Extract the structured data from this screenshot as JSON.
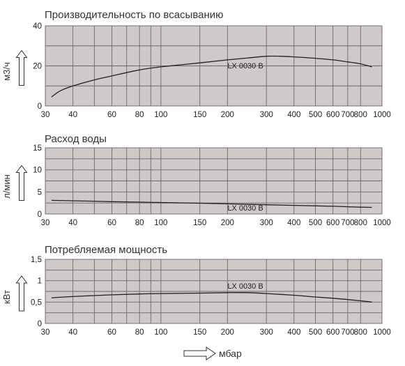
{
  "chart_data": [
    {
      "type": "line",
      "title": "Производительность по всасыванию",
      "xlabel": "мбар",
      "ylabel": "м3/ч",
      "x_scale": "log",
      "xlim": [
        30,
        1000
      ],
      "ylim": [
        0,
        40
      ],
      "x_ticks": [
        "30",
        "40",
        "60",
        "80",
        "100",
        "150",
        "200",
        "300",
        "400",
        "500",
        "600",
        "700",
        "800",
        "1000"
      ],
      "y_ticks": [
        "0",
        "20",
        "40"
      ],
      "grid": true,
      "series": [
        {
          "name": "LX 0030 B",
          "x": [
            32,
            35,
            40,
            50,
            60,
            80,
            100,
            150,
            200,
            250,
            300,
            350,
            400,
            500,
            600,
            700,
            800,
            900
          ],
          "y": [
            4.5,
            7.5,
            10,
            13,
            15,
            18,
            19.5,
            21.5,
            23,
            24,
            24.8,
            24.8,
            24.5,
            23.8,
            23,
            22,
            21,
            19.5
          ]
        }
      ]
    },
    {
      "type": "line",
      "title": "Расход воды",
      "xlabel": "мбар",
      "ylabel": "л/мин",
      "x_scale": "log",
      "xlim": [
        30,
        1000
      ],
      "ylim": [
        0,
        15
      ],
      "x_ticks": [
        "30",
        "40",
        "60",
        "80",
        "100",
        "150",
        "200",
        "300",
        "400",
        "500",
        "600",
        "700",
        "800",
        "1000"
      ],
      "y_ticks": [
        "0",
        "5",
        "10",
        "15"
      ],
      "grid": true,
      "series": [
        {
          "name": "LX 0030 B",
          "x": [
            32,
            40,
            60,
            80,
            100,
            150,
            200,
            300,
            400,
            500,
            600,
            700,
            800,
            900
          ],
          "y": [
            3.1,
            3.0,
            2.8,
            2.7,
            2.6,
            2.45,
            2.3,
            2.1,
            1.95,
            1.85,
            1.75,
            1.65,
            1.55,
            1.5
          ]
        }
      ]
    },
    {
      "type": "line",
      "title": "Потребляемая мощность",
      "xlabel": "мбар",
      "ylabel": "кВт",
      "x_scale": "log",
      "xlim": [
        30,
        1000
      ],
      "ylim": [
        0,
        1.5
      ],
      "x_ticks": [
        "30",
        "40",
        "60",
        "80",
        "100",
        "150",
        "200",
        "300",
        "400",
        "500",
        "600",
        "700",
        "800",
        "1000"
      ],
      "y_ticks": [
        "0",
        "0,5",
        "1",
        "1,5"
      ],
      "grid": true,
      "series": [
        {
          "name": "LX 0030 B",
          "x": [
            32,
            40,
            60,
            80,
            100,
            150,
            200,
            250,
            300,
            400,
            500,
            600,
            700,
            800,
            900
          ],
          "y": [
            0.6,
            0.63,
            0.67,
            0.69,
            0.7,
            0.71,
            0.72,
            0.72,
            0.7,
            0.66,
            0.62,
            0.59,
            0.56,
            0.53,
            0.5
          ]
        }
      ]
    }
  ]
}
